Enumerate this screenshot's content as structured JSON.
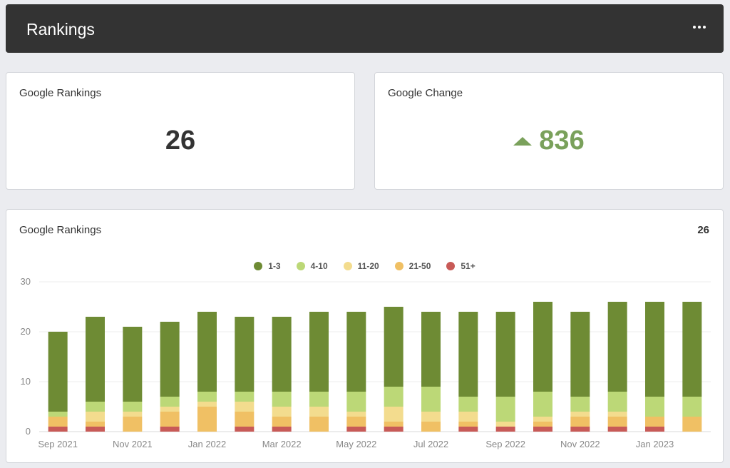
{
  "header": {
    "title": "Rankings"
  },
  "kpi_rankings": {
    "title": "Google Rankings",
    "value": "26"
  },
  "kpi_change": {
    "title": "Google Change",
    "value": "836",
    "direction": "up",
    "color": "#7aa15b"
  },
  "chart_card": {
    "title": "Google Rankings",
    "total": "26"
  },
  "chart_data": {
    "type": "bar",
    "stacked": true,
    "title": "",
    "xlabel": "",
    "ylabel": "",
    "ylim": [
      0,
      30
    ],
    "yticks": [
      0,
      10,
      20,
      30
    ],
    "grid": true,
    "legend_position": "top",
    "categories": [
      "Sep 2021",
      "Oct 2021",
      "Nov 2021",
      "Dec 2021",
      "Jan 2022",
      "Feb 2022",
      "Mar 2022",
      "Apr 2022",
      "May 2022",
      "Jun 2022",
      "Jul 2022",
      "Aug 2022",
      "Sep 2022",
      "Oct 2022",
      "Nov 2022",
      "Dec 2022",
      "Jan 2023",
      "Feb 2023"
    ],
    "xtick_labels": [
      "Sep 2021",
      "Nov 2021",
      "Jan 2022",
      "Mar 2022",
      "May 2022",
      "Jul 2022",
      "Sep 2022",
      "Nov 2022",
      "Jan 2023"
    ],
    "series": [
      {
        "name": "51+",
        "color": "#c85a57",
        "values": [
          1,
          1,
          0,
          1,
          0,
          1,
          1,
          0,
          1,
          1,
          0,
          1,
          1,
          1,
          1,
          1,
          1,
          0
        ]
      },
      {
        "name": "21-50",
        "color": "#f0c064",
        "values": [
          2,
          1,
          3,
          3,
          5,
          3,
          2,
          3,
          2,
          1,
          2,
          1,
          0,
          1,
          2,
          2,
          2,
          3
        ]
      },
      {
        "name": "11-20",
        "color": "#f3dc8e",
        "values": [
          0,
          2,
          1,
          1,
          1,
          2,
          2,
          2,
          1,
          3,
          2,
          2,
          1,
          1,
          1,
          1,
          0,
          0
        ]
      },
      {
        "name": "4-10",
        "color": "#bcd877",
        "values": [
          1,
          2,
          2,
          2,
          2,
          2,
          3,
          3,
          4,
          4,
          5,
          3,
          5,
          5,
          3,
          4,
          4,
          4
        ]
      },
      {
        "name": "1-3",
        "color": "#6e8b34",
        "values": [
          16,
          17,
          15,
          15,
          16,
          15,
          15,
          16,
          16,
          16,
          15,
          17,
          17,
          18,
          17,
          18,
          19,
          19
        ]
      }
    ],
    "legend_order": [
      "1-3",
      "4-10",
      "11-20",
      "21-50",
      "51+"
    ]
  }
}
